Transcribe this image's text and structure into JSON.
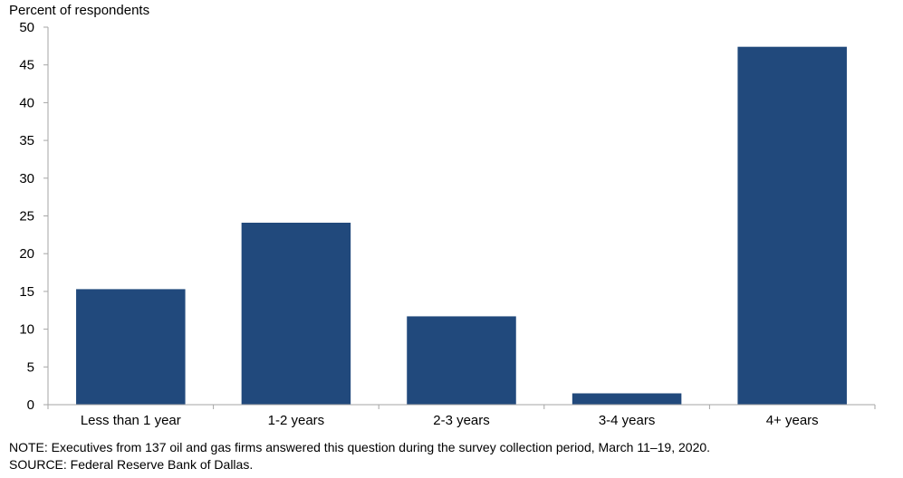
{
  "chart_data": {
    "type": "bar",
    "ylabel": "Percent of respondents",
    "xlabel": "",
    "categories": [
      "Less than 1 year",
      "1-2 years",
      "2-3 years",
      "3-4 years",
      "4+ years"
    ],
    "values": [
      15.3,
      24.1,
      11.7,
      1.5,
      47.4
    ],
    "ylim": [
      0,
      50
    ],
    "yticks": [
      0,
      5,
      10,
      15,
      20,
      25,
      30,
      35,
      40,
      45,
      50
    ],
    "grid": false,
    "colors": {
      "bar": "#21497c",
      "axis": "#a6a6a6"
    }
  },
  "footer": {
    "note": "NOTE:  Executives  from  137  oil  and  gas  firms  answered  this  question  during  the  survey  collection  period,  March  11–19,  2020.",
    "source": "SOURCE:  Federal  Reserve  Bank  of  Dallas."
  }
}
